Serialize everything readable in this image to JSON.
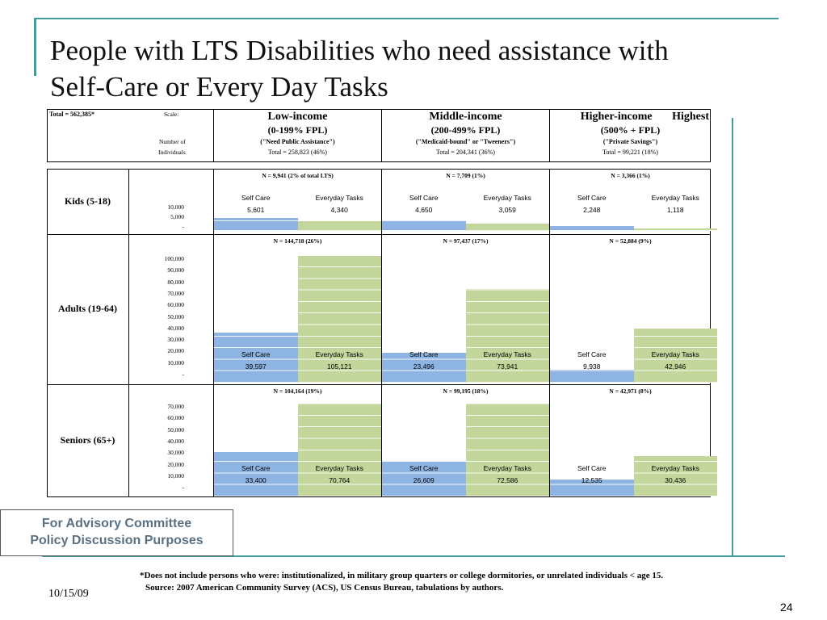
{
  "slide": {
    "title_line1": "People with LTS Disabilities who need assistance with",
    "title_line2": "Self-Care or Every Day Tasks",
    "date": "10/15/09",
    "page_number": "24",
    "advisory_line1": "For Advisory Committee",
    "advisory_line2": "Policy Discussion Purposes",
    "footnote1": "*Does not include persons who were: institutionalized, in military group quarters or college dormitories, or unrelated individuals < age 15.",
    "footnote2": "Source:  2007 American Community Survey (ACS), US Census Bureau, tabulations by authors.",
    "accent_color": "#3f9d9d"
  },
  "header": {
    "total": "Total = 562,385*",
    "scale_label": "Scale:",
    "number_of": "Number of",
    "individuals": "Individuals",
    "groups": [
      {
        "name": "Low-income",
        "range": "(0-199% FPL)",
        "note": "(\"Need Public Assistance\")",
        "total": "Total = 258,823 (46%)"
      },
      {
        "name": "Middle-income",
        "range": "(200-499% FPL)",
        "note": "(\"Medicaid-bound\" or \"Tweeners\")",
        "total": "Total = 204,341 (36%)"
      },
      {
        "name": "Higher-income       Highest",
        "range": "(500% + FPL)",
        "note": "(\"Private Savings\")",
        "total": "Total = 99,221 (18%)"
      }
    ]
  },
  "chart_data": {
    "type": "bar",
    "colors": {
      "self_care": "#8eb4e3",
      "everyday_tasks": "#c3d69b"
    },
    "rows": [
      {
        "label": "Kids (5-18)",
        "ticks": [
          "10,000",
          "5,000",
          "-"
        ],
        "ylim": [
          0,
          10000
        ],
        "groups": [
          {
            "n_label": "N = 9,941 (2% of total LTS)",
            "self_care_label": "Self Care",
            "everyday_label": "Everyday Tasks",
            "self_care_text": "5,601",
            "everyday_text": "4,340",
            "self_care": 5601,
            "everyday_tasks": 4340
          },
          {
            "n_label": "N = 7,709 (1%)",
            "self_care_label": "Self Care",
            "everyday_label": "Everyday Tasks",
            "self_care_text": "4,650",
            "everyday_text": "3,059",
            "self_care": 4650,
            "everyday_tasks": 3059
          },
          {
            "n_label": "N = 3,366 (1%)",
            "self_care_label": "Self Care",
            "everyday_label": "Everyday Tasks",
            "self_care_text": "2,248",
            "everyday_text": "1,118",
            "self_care": 2248,
            "everyday_tasks": 1118
          }
        ]
      },
      {
        "label": "Adults (19-64)",
        "ticks": [
          "100,000",
          "90,000",
          "80,000",
          "70,000",
          "60,000",
          "50,000",
          "40,000",
          "30,000",
          "20,000",
          "10,000",
          "-"
        ],
        "ylim": [
          0,
          100000
        ],
        "groups": [
          {
            "n_label": "N = 144,718 (26%)",
            "self_care_label": "Self Care",
            "everyday_label": "Everyday Tasks",
            "self_care_text": "39,597",
            "everyday_text": "105,121",
            "self_care": 39597,
            "everyday_tasks": 105121
          },
          {
            "n_label": "N = 97,437 (17%)",
            "self_care_label": "Self Care",
            "everyday_label": "Everyday Tasks",
            "self_care_text": "23,496",
            "everyday_text": "73,941",
            "self_care": 23496,
            "everyday_tasks": 73941
          },
          {
            "n_label": "N = 52,884 (9%)",
            "self_care_label": "Self Care",
            "everyday_label": "Everyday Tasks",
            "self_care_text": "9,938",
            "everyday_text": "42,946",
            "self_care": 9938,
            "everyday_tasks": 42946
          }
        ]
      },
      {
        "label": "Seniors (65+)",
        "ticks": [
          "70,000",
          "60,000",
          "50,000",
          "40,000",
          "30,000",
          "20,000",
          "10,000",
          "-"
        ],
        "ylim": [
          0,
          70000
        ],
        "groups": [
          {
            "n_label": "N = 104,164 (19%)",
            "self_care_label": "Self Care",
            "everyday_label": "Everyday Tasks",
            "self_care_text": "33,400",
            "everyday_text": "70,764",
            "self_care": 33400,
            "everyday_tasks": 70764
          },
          {
            "n_label": "N = 99,195 (18%)",
            "self_care_label": "Self Care",
            "everyday_label": "Everyday Tasks",
            "self_care_text": "26,609",
            "everyday_text": "72,586",
            "self_care": 26609,
            "everyday_tasks": 72586
          },
          {
            "n_label": "N = 42,971 (8%)",
            "self_care_label": "Self Care",
            "everyday_label": "Everyday Tasks",
            "self_care_text": "12,535",
            "everyday_text": "30,436",
            "self_care": 12535,
            "everyday_tasks": 30436
          }
        ]
      }
    ]
  }
}
